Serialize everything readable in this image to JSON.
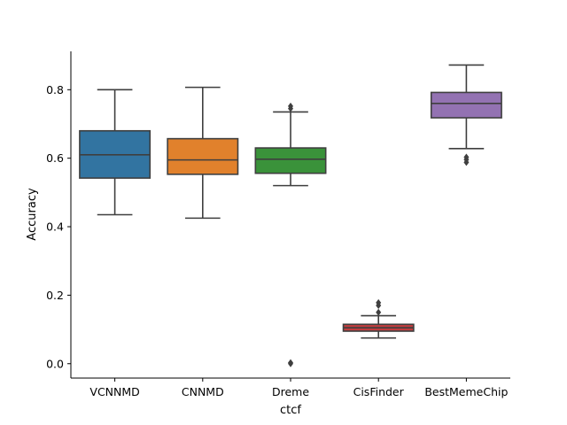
{
  "chart_data": {
    "type": "box",
    "xlabel": "ctcf",
    "ylabel": "Accuracy",
    "ylim": [
      -0.042,
      0.912
    ],
    "yticks": [
      0.0,
      0.2,
      0.4,
      0.6,
      0.8
    ],
    "ytick_labels": [
      "0.0",
      "0.2",
      "0.4",
      "0.6",
      "0.8"
    ],
    "grid": false,
    "categories": [
      "VCNNMD",
      "CNNMD",
      "Dreme",
      "CisFinder",
      "BestMemeChip"
    ],
    "boxes": [
      {
        "name": "VCNNMD",
        "color": "#3274a1",
        "whisker_low": 0.435,
        "q1": 0.542,
        "median": 0.61,
        "q3": 0.68,
        "whisker_high": 0.8,
        "outliers": []
      },
      {
        "name": "CNNMD",
        "color": "#e1812c",
        "whisker_low": 0.425,
        "q1": 0.553,
        "median": 0.595,
        "q3": 0.657,
        "whisker_high": 0.807,
        "outliers": []
      },
      {
        "name": "Dreme",
        "color": "#3a923a",
        "whisker_low": 0.52,
        "q1": 0.556,
        "median": 0.597,
        "q3": 0.63,
        "whisker_high": 0.735,
        "outliers": [
          0.0,
          0.003,
          0.745,
          0.752
        ]
      },
      {
        "name": "CisFinder",
        "color": "#c03d3e",
        "whisker_low": 0.075,
        "q1": 0.095,
        "median": 0.105,
        "q3": 0.115,
        "whisker_high": 0.14,
        "outliers": [
          0.15,
          0.17,
          0.178
        ]
      },
      {
        "name": "BestMemeChip",
        "color": "#9372b2",
        "whisker_low": 0.628,
        "q1": 0.718,
        "median": 0.76,
        "q3": 0.792,
        "whisker_high": 0.872,
        "outliers": [
          0.588,
          0.596,
          0.603
        ]
      }
    ]
  }
}
